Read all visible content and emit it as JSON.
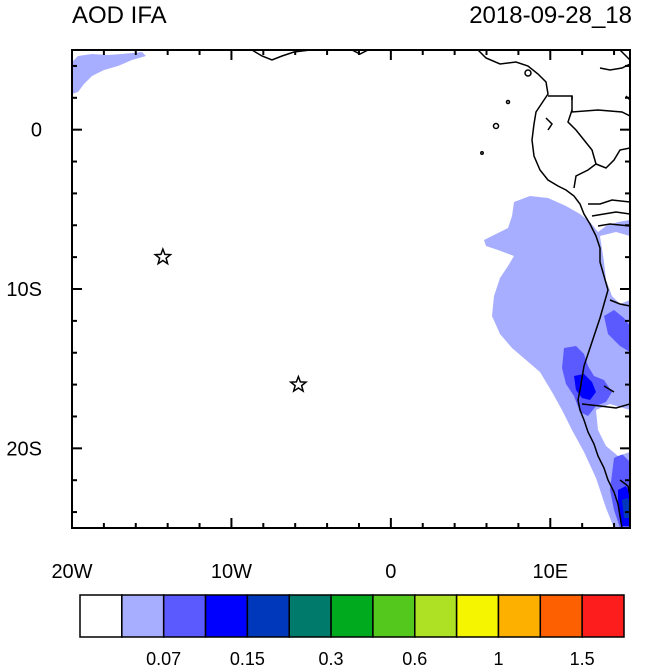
{
  "title_left": "AOD IFA",
  "title_right": "2018-09-28_18",
  "map": {
    "lon_range": [
      -20,
      15
    ],
    "lat_range": [
      -25,
      5
    ],
    "x_ticks": [
      {
        "lon": -20,
        "label": "20W"
      },
      {
        "lon": -10,
        "label": "10W"
      },
      {
        "lon": 0,
        "label": "0"
      },
      {
        "lon": 10,
        "label": "10E"
      }
    ],
    "y_ticks": [
      {
        "lat": 0,
        "label": "0"
      },
      {
        "lat": -10,
        "label": "10S"
      },
      {
        "lat": -20,
        "label": "20S"
      }
    ],
    "markers": [
      {
        "name": "star-marker",
        "lon": -14.3,
        "lat": -8.0
      },
      {
        "name": "star-marker",
        "lon": -5.8,
        "lat": -16.0
      }
    ]
  },
  "colorbar": {
    "colors": [
      "#ffffff",
      "#a8aeff",
      "#5a5aff",
      "#0000ff",
      "#0038bc",
      "#007a6a",
      "#00aa1e",
      "#55c81e",
      "#aee023",
      "#f5f500",
      "#fdb000",
      "#fd6000",
      "#fd1d1d"
    ],
    "labels": [
      "0.07",
      "0.15",
      "0.3",
      "0.6",
      "1",
      "1.5"
    ]
  }
}
